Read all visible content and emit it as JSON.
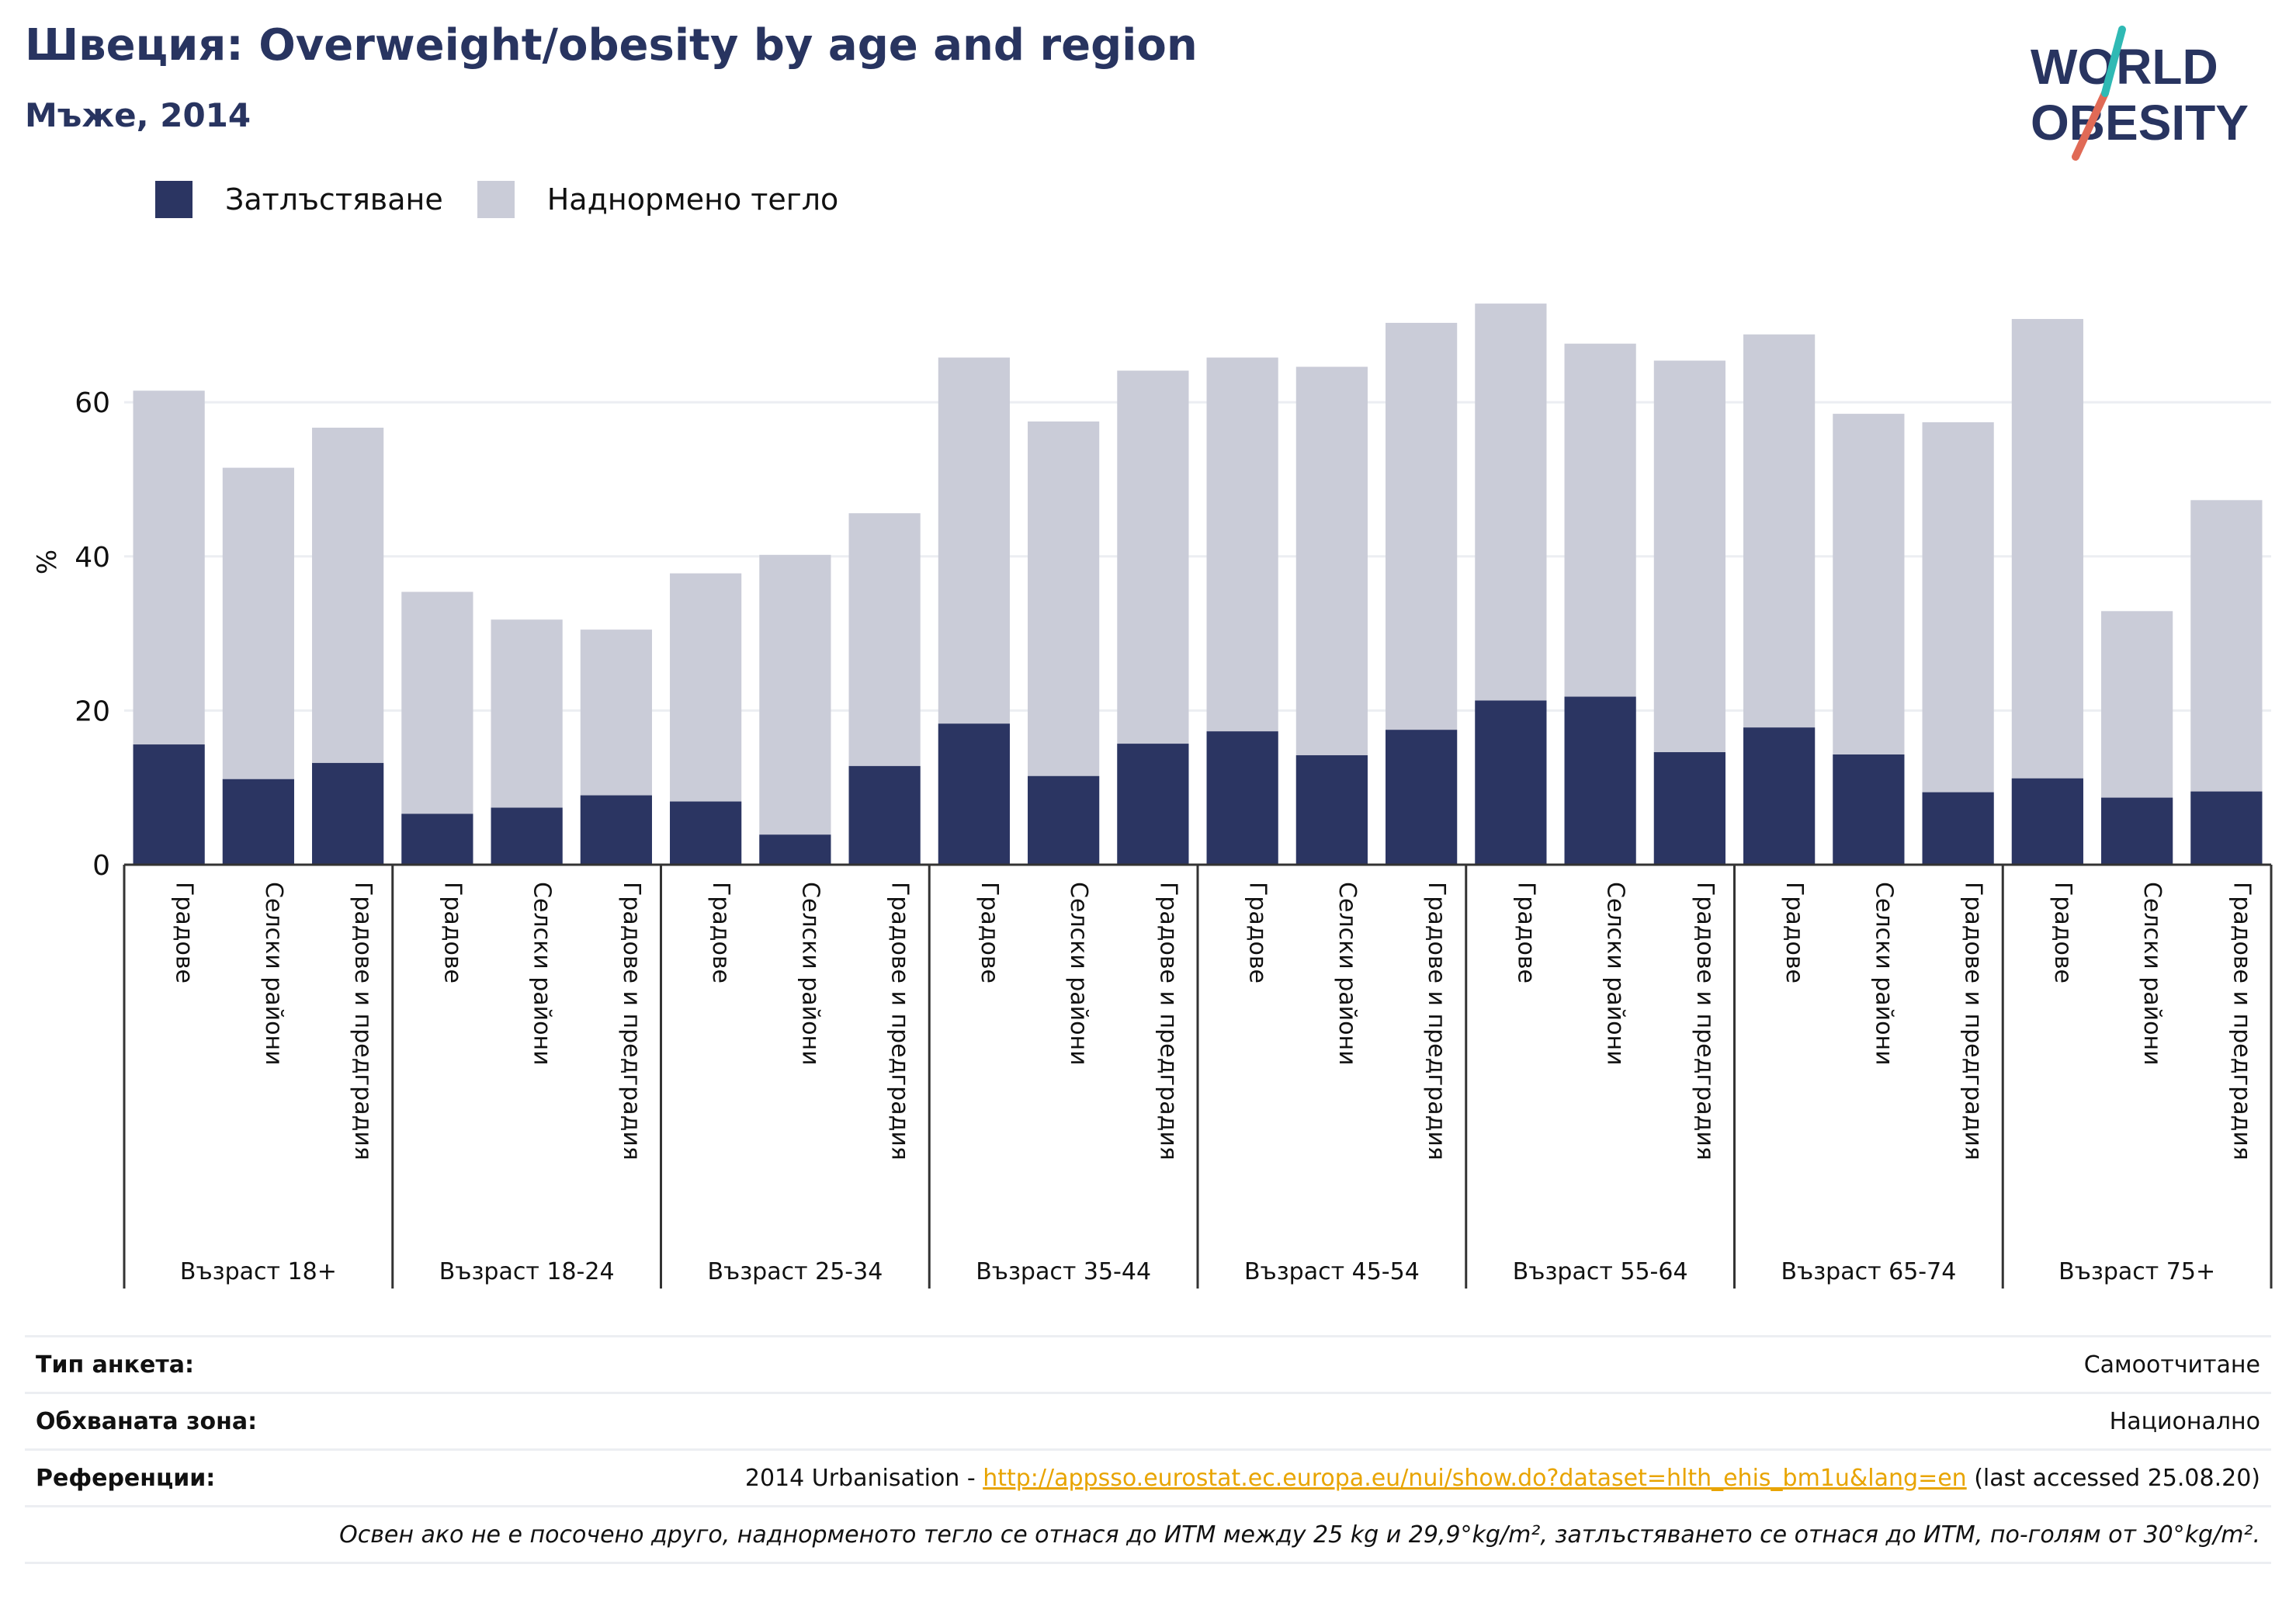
{
  "header": {
    "title": "Швеция: Overweight/obesity by age and region",
    "subtitle": "Мъже, 2014",
    "logo_text_1": "WORLD",
    "logo_text_2": "OBESITY"
  },
  "legend": [
    {
      "label": "Затлъстяване",
      "color": "#2b3562"
    },
    {
      "label": "Наднормено тегло",
      "color": "#caccd8"
    }
  ],
  "chart_data": {
    "type": "bar",
    "stacked": false,
    "ylabel": "%",
    "ylim": [
      0,
      75
    ],
    "yticks": [
      0,
      20,
      40,
      60
    ],
    "grid": true,
    "legend_position": "top-left",
    "groups": [
      "Възраст 18+",
      "Възраст 18-24",
      "Възраст 25-34",
      "Възраст 35-44",
      "Възраст 45-54",
      "Възраст 55-64",
      "Възраст 65-74",
      "Възраст 75+"
    ],
    "categories_per_group": [
      "Градове",
      "Селски райони",
      "Градове и предградия"
    ],
    "series": [
      {
        "name": "Затлъстяване",
        "color": "#2b3562",
        "values": [
          15.6,
          11.1,
          13.2,
          6.6,
          7.4,
          9.0,
          8.2,
          3.9,
          12.8,
          18.3,
          11.5,
          15.7,
          17.3,
          14.2,
          17.5,
          21.3,
          21.8,
          14.6,
          17.8,
          14.3,
          9.4,
          11.2,
          8.7,
          9.5
        ]
      },
      {
        "name": "Наднормено тегло",
        "color": "#caccd8",
        "values": [
          61.5,
          51.5,
          56.7,
          35.4,
          31.8,
          30.5,
          37.8,
          40.2,
          45.6,
          65.8,
          57.5,
          64.1,
          65.8,
          64.6,
          70.3,
          72.8,
          67.6,
          65.4,
          68.8,
          58.5,
          57.4,
          70.8,
          32.9,
          47.3
        ]
      }
    ]
  },
  "footer": {
    "survey_label": "Тип анкета:",
    "survey_value": "Самоотчитане",
    "coverage_label": "Обхваната зона:",
    "coverage_value": "Национално",
    "refs_label": "Референции:",
    "refs_prefix": "2014 Urbanisation - ",
    "refs_link": "http://appsso.eurostat.ec.europa.eu/nui/show.do?dataset=hlth_ehis_bm1u&lang=en",
    "refs_suffix": " (last accessed 25.08.20)",
    "note": "Освен ако не е посочено друго, наднорменото тегло се отнася до ИТМ между 25 kg и 29,9°kg/m², затлъстяването се отнася до ИТМ, по-голям от 30°kg/m²."
  }
}
